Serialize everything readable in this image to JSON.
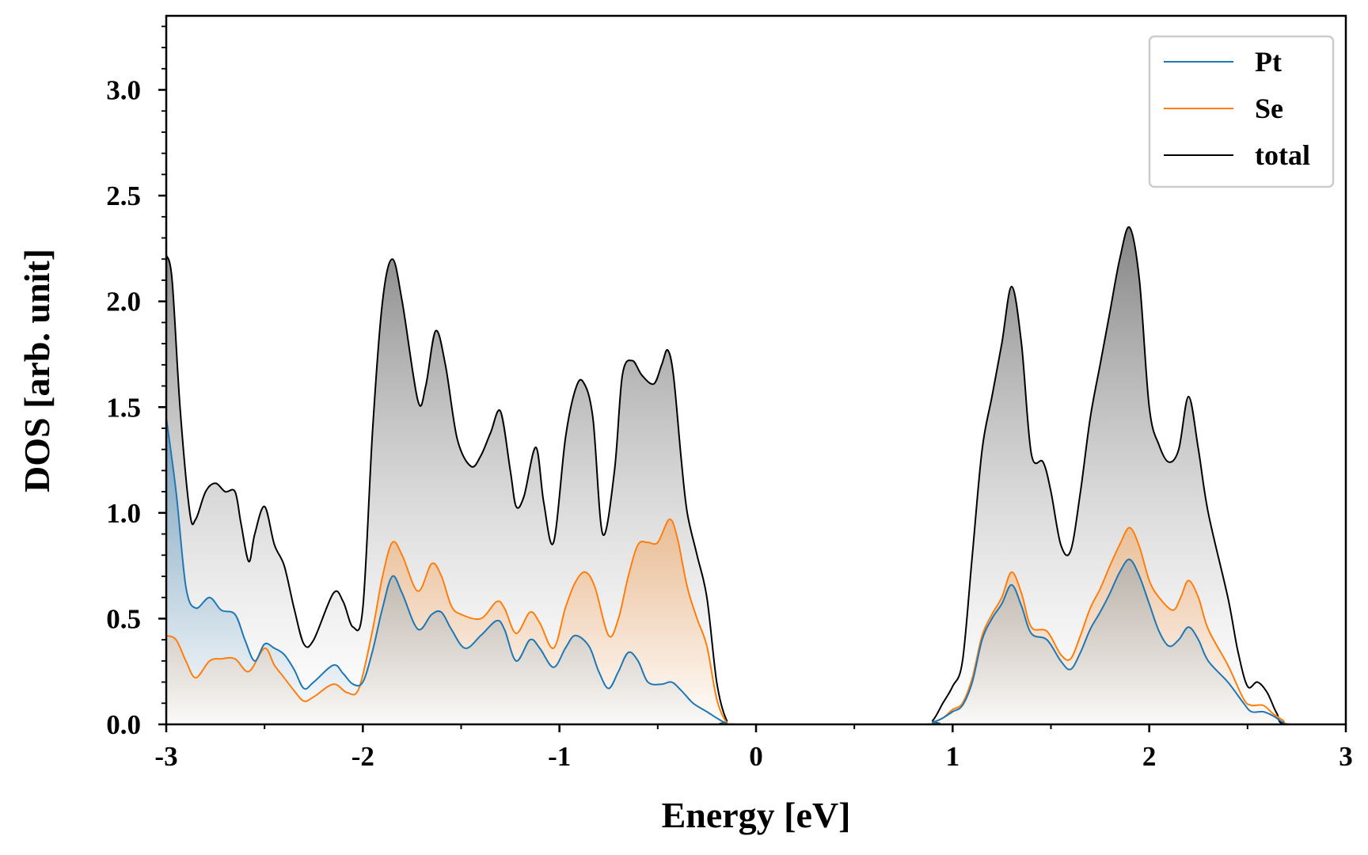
{
  "chart_data": {
    "type": "line",
    "title": "",
    "xlabel": "Energy [eV]",
    "ylabel": "DOS [arb. unit]",
    "xlim": [
      -3,
      3
    ],
    "ylim": [
      0,
      3.35
    ],
    "x_ticks": [
      -3,
      -2,
      -1,
      0,
      1,
      2,
      3
    ],
    "x_tick_labels": [
      "-3",
      "-2",
      "-1",
      "0",
      "1",
      "2",
      "3"
    ],
    "y_ticks": [
      0,
      0.5,
      1.0,
      1.5,
      2.0,
      2.5,
      3.0
    ],
    "y_tick_labels": [
      "0.0",
      "0.5",
      "1.0",
      "1.5",
      "2.0",
      "2.5",
      "3.0"
    ],
    "legend_position": "top-right",
    "series": [
      {
        "name": "Pt",
        "color": "#1f77b4",
        "fill": "gradient",
        "points": [
          [
            -3.0,
            1.45
          ],
          [
            -2.95,
            1.1
          ],
          [
            -2.9,
            0.65
          ],
          [
            -2.85,
            0.55
          ],
          [
            -2.78,
            0.6
          ],
          [
            -2.72,
            0.54
          ],
          [
            -2.65,
            0.52
          ],
          [
            -2.6,
            0.4
          ],
          [
            -2.55,
            0.3
          ],
          [
            -2.5,
            0.38
          ],
          [
            -2.45,
            0.36
          ],
          [
            -2.4,
            0.33
          ],
          [
            -2.35,
            0.26
          ],
          [
            -2.3,
            0.17
          ],
          [
            -2.25,
            0.2
          ],
          [
            -2.15,
            0.28
          ],
          [
            -2.1,
            0.24
          ],
          [
            -2.05,
            0.19
          ],
          [
            -2.0,
            0.2
          ],
          [
            -1.95,
            0.35
          ],
          [
            -1.9,
            0.55
          ],
          [
            -1.85,
            0.7
          ],
          [
            -1.8,
            0.62
          ],
          [
            -1.72,
            0.45
          ],
          [
            -1.65,
            0.52
          ],
          [
            -1.6,
            0.53
          ],
          [
            -1.55,
            0.45
          ],
          [
            -1.48,
            0.36
          ],
          [
            -1.4,
            0.42
          ],
          [
            -1.32,
            0.49
          ],
          [
            -1.28,
            0.45
          ],
          [
            -1.22,
            0.3
          ],
          [
            -1.15,
            0.4
          ],
          [
            -1.1,
            0.36
          ],
          [
            -1.03,
            0.27
          ],
          [
            -0.97,
            0.36
          ],
          [
            -0.92,
            0.42
          ],
          [
            -0.85,
            0.37
          ],
          [
            -0.8,
            0.25
          ],
          [
            -0.75,
            0.17
          ],
          [
            -0.7,
            0.25
          ],
          [
            -0.65,
            0.34
          ],
          [
            -0.6,
            0.3
          ],
          [
            -0.55,
            0.2
          ],
          [
            -0.48,
            0.19
          ],
          [
            -0.43,
            0.2
          ],
          [
            -0.38,
            0.16
          ],
          [
            -0.32,
            0.1
          ],
          [
            -0.25,
            0.06
          ],
          [
            -0.2,
            0.03
          ],
          [
            -0.15,
            0.005
          ],
          [
            -0.1,
            0.0
          ],
          [
            0.85,
            0.0
          ],
          [
            0.9,
            0.01
          ],
          [
            0.95,
            0.03
          ],
          [
            1.0,
            0.06
          ],
          [
            1.05,
            0.09
          ],
          [
            1.1,
            0.2
          ],
          [
            1.15,
            0.4
          ],
          [
            1.2,
            0.5
          ],
          [
            1.25,
            0.57
          ],
          [
            1.3,
            0.66
          ],
          [
            1.35,
            0.56
          ],
          [
            1.4,
            0.43
          ],
          [
            1.48,
            0.4
          ],
          [
            1.55,
            0.3
          ],
          [
            1.6,
            0.26
          ],
          [
            1.65,
            0.34
          ],
          [
            1.7,
            0.45
          ],
          [
            1.75,
            0.53
          ],
          [
            1.8,
            0.62
          ],
          [
            1.85,
            0.72
          ],
          [
            1.9,
            0.78
          ],
          [
            1.95,
            0.7
          ],
          [
            2.0,
            0.57
          ],
          [
            2.05,
            0.44
          ],
          [
            2.1,
            0.37
          ],
          [
            2.15,
            0.4
          ],
          [
            2.2,
            0.46
          ],
          [
            2.25,
            0.4
          ],
          [
            2.3,
            0.3
          ],
          [
            2.4,
            0.2
          ],
          [
            2.48,
            0.1
          ],
          [
            2.52,
            0.06
          ],
          [
            2.58,
            0.06
          ],
          [
            2.63,
            0.04
          ],
          [
            2.68,
            0.01
          ],
          [
            2.72,
            0.0
          ],
          [
            3.0,
            0.0
          ]
        ]
      },
      {
        "name": "Se",
        "color": "#ff7f0e",
        "fill": "gradient",
        "points": [
          [
            -3.0,
            0.42
          ],
          [
            -2.95,
            0.4
          ],
          [
            -2.9,
            0.3
          ],
          [
            -2.85,
            0.22
          ],
          [
            -2.78,
            0.3
          ],
          [
            -2.72,
            0.31
          ],
          [
            -2.65,
            0.31
          ],
          [
            -2.58,
            0.25
          ],
          [
            -2.5,
            0.36
          ],
          [
            -2.45,
            0.28
          ],
          [
            -2.4,
            0.22
          ],
          [
            -2.35,
            0.16
          ],
          [
            -2.3,
            0.11
          ],
          [
            -2.25,
            0.13
          ],
          [
            -2.15,
            0.19
          ],
          [
            -2.08,
            0.15
          ],
          [
            -2.02,
            0.17
          ],
          [
            -1.95,
            0.45
          ],
          [
            -1.9,
            0.7
          ],
          [
            -1.85,
            0.86
          ],
          [
            -1.8,
            0.8
          ],
          [
            -1.72,
            0.63
          ],
          [
            -1.65,
            0.76
          ],
          [
            -1.6,
            0.7
          ],
          [
            -1.55,
            0.56
          ],
          [
            -1.5,
            0.52
          ],
          [
            -1.4,
            0.5
          ],
          [
            -1.32,
            0.58
          ],
          [
            -1.28,
            0.55
          ],
          [
            -1.22,
            0.43
          ],
          [
            -1.15,
            0.53
          ],
          [
            -1.1,
            0.48
          ],
          [
            -1.03,
            0.36
          ],
          [
            -0.97,
            0.55
          ],
          [
            -0.92,
            0.67
          ],
          [
            -0.87,
            0.72
          ],
          [
            -0.82,
            0.65
          ],
          [
            -0.75,
            0.42
          ],
          [
            -0.7,
            0.5
          ],
          [
            -0.65,
            0.7
          ],
          [
            -0.6,
            0.85
          ],
          [
            -0.55,
            0.86
          ],
          [
            -0.5,
            0.86
          ],
          [
            -0.44,
            0.97
          ],
          [
            -0.4,
            0.88
          ],
          [
            -0.35,
            0.65
          ],
          [
            -0.3,
            0.5
          ],
          [
            -0.25,
            0.37
          ],
          [
            -0.2,
            0.12
          ],
          [
            -0.15,
            0.01
          ],
          [
            -0.1,
            0.0
          ],
          [
            0.85,
            0.0
          ],
          [
            0.9,
            0.01
          ],
          [
            0.95,
            0.03
          ],
          [
            1.0,
            0.07
          ],
          [
            1.05,
            0.1
          ],
          [
            1.1,
            0.22
          ],
          [
            1.15,
            0.42
          ],
          [
            1.2,
            0.52
          ],
          [
            1.25,
            0.6
          ],
          [
            1.3,
            0.72
          ],
          [
            1.35,
            0.62
          ],
          [
            1.4,
            0.46
          ],
          [
            1.48,
            0.44
          ],
          [
            1.55,
            0.33
          ],
          [
            1.6,
            0.31
          ],
          [
            1.65,
            0.42
          ],
          [
            1.7,
            0.55
          ],
          [
            1.75,
            0.64
          ],
          [
            1.8,
            0.75
          ],
          [
            1.85,
            0.85
          ],
          [
            1.9,
            0.93
          ],
          [
            1.95,
            0.84
          ],
          [
            2.0,
            0.68
          ],
          [
            2.05,
            0.6
          ],
          [
            2.12,
            0.54
          ],
          [
            2.16,
            0.6
          ],
          [
            2.2,
            0.68
          ],
          [
            2.25,
            0.6
          ],
          [
            2.3,
            0.45
          ],
          [
            2.4,
            0.28
          ],
          [
            2.48,
            0.12
          ],
          [
            2.52,
            0.09
          ],
          [
            2.58,
            0.09
          ],
          [
            2.63,
            0.05
          ],
          [
            2.68,
            0.02
          ],
          [
            2.72,
            0.0
          ],
          [
            3.0,
            0.0
          ]
        ]
      },
      {
        "name": "total",
        "color": "#000000",
        "fill": "gray-gradient",
        "points": [
          [
            -3.0,
            2.22
          ],
          [
            -2.97,
            2.1
          ],
          [
            -2.93,
            1.5
          ],
          [
            -2.88,
            1.0
          ],
          [
            -2.85,
            0.97
          ],
          [
            -2.8,
            1.1
          ],
          [
            -2.75,
            1.14
          ],
          [
            -2.7,
            1.1
          ],
          [
            -2.65,
            1.1
          ],
          [
            -2.62,
            0.95
          ],
          [
            -2.58,
            0.77
          ],
          [
            -2.55,
            0.9
          ],
          [
            -2.5,
            1.03
          ],
          [
            -2.45,
            0.85
          ],
          [
            -2.4,
            0.75
          ],
          [
            -2.35,
            0.55
          ],
          [
            -2.3,
            0.38
          ],
          [
            -2.25,
            0.4
          ],
          [
            -2.15,
            0.62
          ],
          [
            -2.1,
            0.58
          ],
          [
            -2.05,
            0.46
          ],
          [
            -2.0,
            0.55
          ],
          [
            -1.95,
            1.4
          ],
          [
            -1.9,
            2.0
          ],
          [
            -1.85,
            2.2
          ],
          [
            -1.8,
            2.0
          ],
          [
            -1.72,
            1.53
          ],
          [
            -1.68,
            1.6
          ],
          [
            -1.63,
            1.86
          ],
          [
            -1.58,
            1.7
          ],
          [
            -1.52,
            1.35
          ],
          [
            -1.45,
            1.22
          ],
          [
            -1.4,
            1.27
          ],
          [
            -1.35,
            1.38
          ],
          [
            -1.3,
            1.48
          ],
          [
            -1.25,
            1.2
          ],
          [
            -1.22,
            1.03
          ],
          [
            -1.18,
            1.08
          ],
          [
            -1.12,
            1.31
          ],
          [
            -1.08,
            1.05
          ],
          [
            -1.03,
            0.86
          ],
          [
            -0.97,
            1.35
          ],
          [
            -0.92,
            1.58
          ],
          [
            -0.88,
            1.62
          ],
          [
            -0.83,
            1.45
          ],
          [
            -0.78,
            0.9
          ],
          [
            -0.72,
            1.2
          ],
          [
            -0.68,
            1.65
          ],
          [
            -0.63,
            1.72
          ],
          [
            -0.58,
            1.65
          ],
          [
            -0.52,
            1.61
          ],
          [
            -0.48,
            1.7
          ],
          [
            -0.45,
            1.77
          ],
          [
            -0.42,
            1.65
          ],
          [
            -0.38,
            1.25
          ],
          [
            -0.35,
            1.0
          ],
          [
            -0.3,
            0.8
          ],
          [
            -0.25,
            0.6
          ],
          [
            -0.2,
            0.2
          ],
          [
            -0.15,
            0.02
          ],
          [
            -0.1,
            0.0
          ],
          [
            0.85,
            0.0
          ],
          [
            0.9,
            0.02
          ],
          [
            0.95,
            0.1
          ],
          [
            1.0,
            0.18
          ],
          [
            1.05,
            0.3
          ],
          [
            1.1,
            0.8
          ],
          [
            1.15,
            1.3
          ],
          [
            1.2,
            1.55
          ],
          [
            1.25,
            1.8
          ],
          [
            1.3,
            2.07
          ],
          [
            1.35,
            1.8
          ],
          [
            1.4,
            1.28
          ],
          [
            1.46,
            1.24
          ],
          [
            1.5,
            1.1
          ],
          [
            1.55,
            0.85
          ],
          [
            1.6,
            0.82
          ],
          [
            1.65,
            1.1
          ],
          [
            1.7,
            1.45
          ],
          [
            1.75,
            1.7
          ],
          [
            1.8,
            1.95
          ],
          [
            1.85,
            2.2
          ],
          [
            1.9,
            2.35
          ],
          [
            1.95,
            2.1
          ],
          [
            2.0,
            1.5
          ],
          [
            2.05,
            1.32
          ],
          [
            2.1,
            1.24
          ],
          [
            2.15,
            1.3
          ],
          [
            2.2,
            1.55
          ],
          [
            2.25,
            1.3
          ],
          [
            2.3,
            1.0
          ],
          [
            2.4,
            0.6
          ],
          [
            2.45,
            0.35
          ],
          [
            2.5,
            0.18
          ],
          [
            2.55,
            0.2
          ],
          [
            2.6,
            0.15
          ],
          [
            2.65,
            0.05
          ],
          [
            2.7,
            0.0
          ],
          [
            3.0,
            0.0
          ]
        ]
      }
    ]
  }
}
